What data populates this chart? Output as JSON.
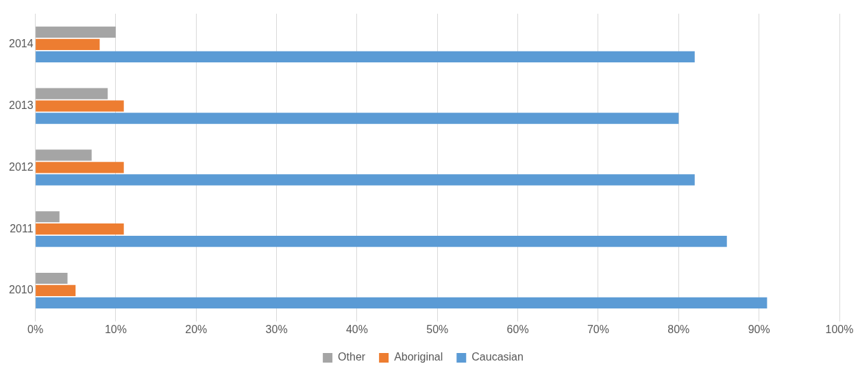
{
  "chart_data": {
    "type": "bar",
    "orientation": "horizontal",
    "categories": [
      "2014",
      "2013",
      "2012",
      "2011",
      "2010"
    ],
    "series": [
      {
        "name": "Other",
        "color": "#a5a5a5",
        "values": [
          10,
          9,
          7,
          3,
          4
        ]
      },
      {
        "name": "Aboriginal",
        "color": "#ed7d31",
        "values": [
          8,
          11,
          11,
          11,
          5
        ]
      },
      {
        "name": "Caucasian",
        "color": "#5b9bd5",
        "values": [
          82,
          80,
          82,
          86,
          91
        ]
      }
    ],
    "xlim": [
      0,
      100
    ],
    "xticks": [
      {
        "value": 0,
        "label": "0%"
      },
      {
        "value": 10,
        "label": "10%"
      },
      {
        "value": 20,
        "label": "20%"
      },
      {
        "value": 30,
        "label": "30%"
      },
      {
        "value": 40,
        "label": "40%"
      },
      {
        "value": 50,
        "label": "50%"
      },
      {
        "value": 60,
        "label": "60%"
      },
      {
        "value": 70,
        "label": "70%"
      },
      {
        "value": 80,
        "label": "80%"
      },
      {
        "value": 90,
        "label": "90%"
      },
      {
        "value": 100,
        "label": "100%"
      }
    ],
    "grid": "x",
    "legend": "bottom"
  }
}
